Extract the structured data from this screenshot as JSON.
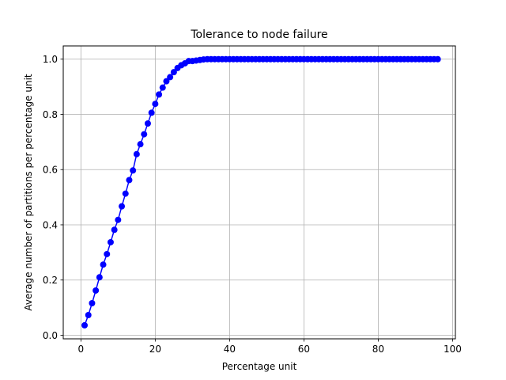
{
  "chart_data": {
    "type": "line",
    "title": "Tolerance to node failure",
    "xlabel": "Percentage unit",
    "ylabel": "Average number of partitions per percentage unit",
    "xlim": [
      -4.75,
      100.75
    ],
    "ylim": [
      -0.013,
      1.048
    ],
    "xticks": [
      0,
      20,
      40,
      60,
      80,
      100
    ],
    "yticks": [
      0.0,
      0.2,
      0.4,
      0.6,
      0.8,
      1.0
    ],
    "xtick_labels": [
      "0",
      "20",
      "40",
      "60",
      "80",
      "100"
    ],
    "ytick_labels": [
      "0.0",
      "0.2",
      "0.4",
      "0.6",
      "0.8",
      "1.0"
    ],
    "grid": true,
    "series": [
      {
        "color": "#0000ff",
        "marker": "circle",
        "x": [
          1,
          2,
          3,
          4,
          5,
          6,
          7,
          8,
          9,
          10,
          11,
          12,
          13,
          14,
          15,
          16,
          17,
          18,
          19,
          20,
          21,
          22,
          23,
          24,
          25,
          26,
          27,
          28,
          29,
          30,
          31,
          32,
          33,
          34,
          35,
          36,
          37,
          38,
          39,
          40,
          41,
          42,
          43,
          44,
          45,
          46,
          47,
          48,
          49,
          50,
          51,
          52,
          53,
          54,
          55,
          56,
          57,
          58,
          59,
          60,
          61,
          62,
          63,
          64,
          65,
          66,
          67,
          68,
          69,
          70,
          71,
          72,
          73,
          74,
          75,
          76,
          77,
          78,
          79,
          80,
          81,
          82,
          83,
          84,
          85,
          86,
          87,
          88,
          89,
          90,
          91,
          92,
          93,
          94,
          95,
          96
        ],
        "y": [
          0.036,
          0.073,
          0.116,
          0.162,
          0.21,
          0.256,
          0.294,
          0.337,
          0.382,
          0.418,
          0.467,
          0.513,
          0.562,
          0.597,
          0.656,
          0.692,
          0.728,
          0.767,
          0.806,
          0.838,
          0.872,
          0.897,
          0.92,
          0.935,
          0.953,
          0.968,
          0.978,
          0.985,
          0.993,
          0.993,
          0.995,
          0.997,
          0.999,
          1.0,
          1.0,
          1.0,
          1.0,
          1.0,
          1.0,
          1.0,
          1.0,
          1.0,
          1.0,
          1.0,
          1.0,
          1.0,
          1.0,
          1.0,
          1.0,
          1.0,
          1.0,
          1.0,
          1.0,
          1.0,
          1.0,
          1.0,
          1.0,
          1.0,
          1.0,
          1.0,
          1.0,
          1.0,
          1.0,
          1.0,
          1.0,
          1.0,
          1.0,
          1.0,
          1.0,
          1.0,
          1.0,
          1.0,
          1.0,
          1.0,
          1.0,
          1.0,
          1.0,
          1.0,
          1.0,
          1.0,
          1.0,
          1.0,
          1.0,
          1.0,
          1.0,
          1.0,
          1.0,
          1.0,
          1.0,
          1.0,
          1.0,
          1.0,
          1.0,
          1.0,
          1.0,
          1.0
        ]
      }
    ]
  }
}
